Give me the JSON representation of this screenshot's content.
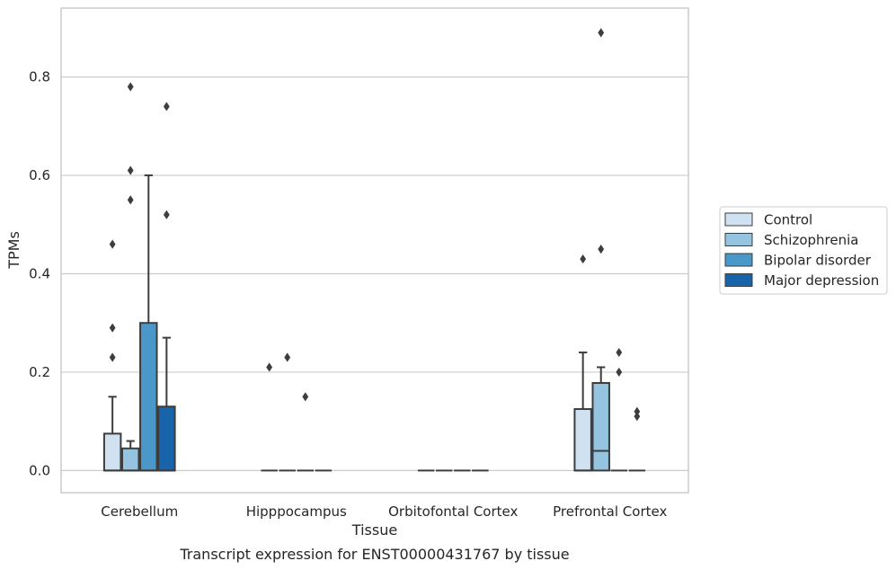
{
  "chart_data": {
    "type": "box",
    "caption": "Transcript expression for ENST00000431767 by tissue",
    "xlabel": "Tissue",
    "ylabel": "TPMs",
    "ylim": [
      -0.045,
      0.94
    ],
    "yticks": [
      0.0,
      0.2,
      0.4,
      0.6,
      0.8
    ],
    "ytick_labels": [
      "0.0",
      "0.2",
      "0.4",
      "0.6",
      "0.8"
    ],
    "grid": "horizontal",
    "legend_position": "right",
    "categories": [
      "Cerebellum",
      "Hipppocampus",
      "Orbitofontal Cortex",
      "Prefrontal Cortex"
    ],
    "series": [
      {
        "name": "Control",
        "color": "#d0e1f2",
        "boxes": [
          {
            "q1": 0.0,
            "median": 0.0,
            "q3": 0.075,
            "whisker_low": 0.0,
            "whisker_high": 0.15,
            "outliers": [
              0.23,
              0.29,
              0.46
            ]
          },
          {
            "q1": 0.0,
            "median": 0.0,
            "q3": 0.0,
            "whisker_low": 0.0,
            "whisker_high": 0.0,
            "outliers": [
              0.21
            ]
          },
          {
            "q1": 0.0,
            "median": 0.0,
            "q3": 0.0,
            "whisker_low": 0.0,
            "whisker_high": 0.0,
            "outliers": []
          },
          {
            "q1": 0.0,
            "median": 0.0,
            "q3": 0.125,
            "whisker_low": 0.0,
            "whisker_high": 0.24,
            "outliers": [
              0.43
            ]
          }
        ]
      },
      {
        "name": "Schizophrenia",
        "color": "#94c4df",
        "boxes": [
          {
            "q1": 0.0,
            "median": 0.0,
            "q3": 0.045,
            "whisker_low": 0.0,
            "whisker_high": 0.06,
            "outliers": [
              0.55,
              0.61,
              0.78
            ]
          },
          {
            "q1": 0.0,
            "median": 0.0,
            "q3": 0.0,
            "whisker_low": 0.0,
            "whisker_high": 0.0,
            "outliers": [
              0.23
            ]
          },
          {
            "q1": 0.0,
            "median": 0.0,
            "q3": 0.0,
            "whisker_low": 0.0,
            "whisker_high": 0.0,
            "outliers": []
          },
          {
            "q1": 0.0,
            "median": 0.04,
            "q3": 0.178,
            "whisker_low": 0.0,
            "whisker_high": 0.21,
            "outliers": [
              0.45,
              0.89
            ]
          }
        ]
      },
      {
        "name": "Bipolar disorder",
        "color": "#4a98c9",
        "boxes": [
          {
            "q1": 0.0,
            "median": 0.0,
            "q3": 0.3,
            "whisker_low": 0.0,
            "whisker_high": 0.6,
            "outliers": []
          },
          {
            "q1": 0.0,
            "median": 0.0,
            "q3": 0.0,
            "whisker_low": 0.0,
            "whisker_high": 0.0,
            "outliers": [
              0.15
            ]
          },
          {
            "q1": 0.0,
            "median": 0.0,
            "q3": 0.0,
            "whisker_low": 0.0,
            "whisker_high": 0.0,
            "outliers": []
          },
          {
            "q1": 0.0,
            "median": 0.0,
            "q3": 0.0,
            "whisker_low": 0.0,
            "whisker_high": 0.0,
            "outliers": [
              0.2,
              0.24
            ]
          }
        ]
      },
      {
        "name": "Major depression",
        "color": "#1764ab",
        "boxes": [
          {
            "q1": 0.0,
            "median": 0.0,
            "q3": 0.13,
            "whisker_low": 0.0,
            "whisker_high": 0.27,
            "outliers": [
              0.52,
              0.74
            ]
          },
          {
            "q1": 0.0,
            "median": 0.0,
            "q3": 0.0,
            "whisker_low": 0.0,
            "whisker_high": 0.0,
            "outliers": []
          },
          {
            "q1": 0.0,
            "median": 0.0,
            "q3": 0.0,
            "whisker_low": 0.0,
            "whisker_high": 0.0,
            "outliers": []
          },
          {
            "q1": 0.0,
            "median": 0.0,
            "q3": 0.0,
            "whisker_low": 0.0,
            "whisker_high": 0.0,
            "outliers": [
              0.11,
              0.12
            ]
          }
        ]
      }
    ]
  }
}
